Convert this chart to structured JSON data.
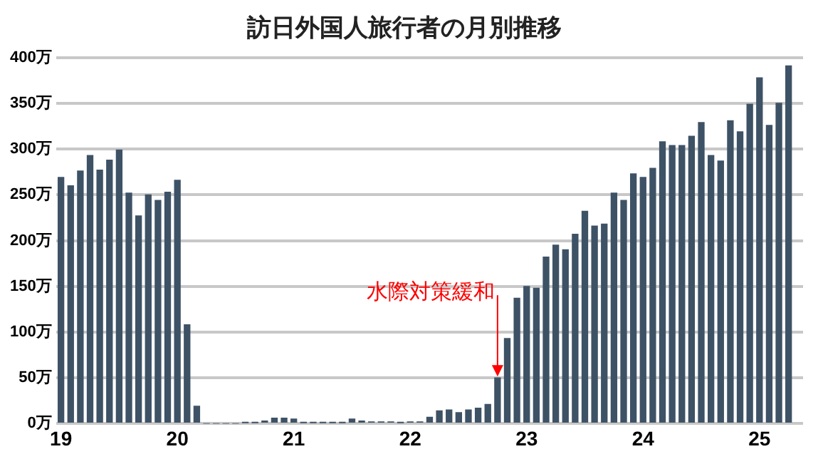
{
  "chart_data": {
    "type": "bar",
    "title": "訪日外国人旅行者の月別推移",
    "x": [
      "2019-01",
      "2019-02",
      "2019-03",
      "2019-04",
      "2019-05",
      "2019-06",
      "2019-07",
      "2019-08",
      "2019-09",
      "2019-10",
      "2019-11",
      "2019-12",
      "2020-01",
      "2020-02",
      "2020-03",
      "2020-04",
      "2020-05",
      "2020-06",
      "2020-07",
      "2020-08",
      "2020-09",
      "2020-10",
      "2020-11",
      "2020-12",
      "2021-01",
      "2021-02",
      "2021-03",
      "2021-04",
      "2021-05",
      "2021-06",
      "2021-07",
      "2021-08",
      "2021-09",
      "2021-10",
      "2021-11",
      "2021-12",
      "2022-01",
      "2022-02",
      "2022-03",
      "2022-04",
      "2022-05",
      "2022-06",
      "2022-07",
      "2022-08",
      "2022-09",
      "2022-10",
      "2022-11",
      "2022-12",
      "2023-01",
      "2023-02",
      "2023-03",
      "2023-04",
      "2023-05",
      "2023-06",
      "2023-07",
      "2023-08",
      "2023-09",
      "2023-10",
      "2023-11",
      "2023-12",
      "2024-01",
      "2024-02",
      "2024-03",
      "2024-04",
      "2024-05",
      "2024-06",
      "2024-07",
      "2024-08",
      "2024-09",
      "2024-10",
      "2024-11",
      "2024-12",
      "2025-01",
      "2025-02",
      "2025-03",
      "2025-04"
    ],
    "values": [
      269,
      260,
      276,
      293,
      277,
      288,
      299,
      252,
      227,
      250,
      244,
      253,
      266,
      108,
      19,
      0,
      0,
      0,
      0,
      1,
      1,
      3,
      6,
      6,
      5,
      1,
      1,
      1,
      1,
      1,
      5,
      3,
      2,
      2,
      2,
      1,
      2,
      2,
      7,
      14,
      15,
      12,
      15,
      17,
      21,
      50,
      93,
      137,
      150,
      148,
      182,
      195,
      190,
      207,
      232,
      216,
      218,
      252,
      244,
      273,
      269,
      279,
      308,
      304,
      304,
      314,
      329,
      293,
      287,
      331,
      319,
      349,
      378,
      326,
      350,
      391
    ],
    "color": "#3e5266",
    "xlim": [
      "2018-12-16",
      "2025-05-16"
    ],
    "xticks": [
      {
        "value": "2019-01",
        "label": "19"
      },
      {
        "value": "2020-01",
        "label": "20"
      },
      {
        "value": "2021-01",
        "label": "21"
      },
      {
        "value": "2022-01",
        "label": "22"
      },
      {
        "value": "2023-01",
        "label": "23"
      },
      {
        "value": "2024-01",
        "label": "24"
      },
      {
        "value": "2025-01",
        "label": "25"
      }
    ],
    "ylim": [
      0,
      400
    ],
    "yticks": [
      {
        "value": 0,
        "label": "0万"
      },
      {
        "value": 50,
        "label": "50万"
      },
      {
        "value": 100,
        "label": "100万"
      },
      {
        "value": 150,
        "label": "150万"
      },
      {
        "value": 200,
        "label": "200万"
      },
      {
        "value": 250,
        "label": "250万"
      },
      {
        "value": 300,
        "label": "300万"
      },
      {
        "value": 350,
        "label": "350万"
      },
      {
        "value": 400,
        "label": "400万"
      }
    ],
    "grid": "y",
    "annotations": [
      {
        "text": "水際対策緩和",
        "x": "2022-10",
        "y": 50
      }
    ]
  }
}
